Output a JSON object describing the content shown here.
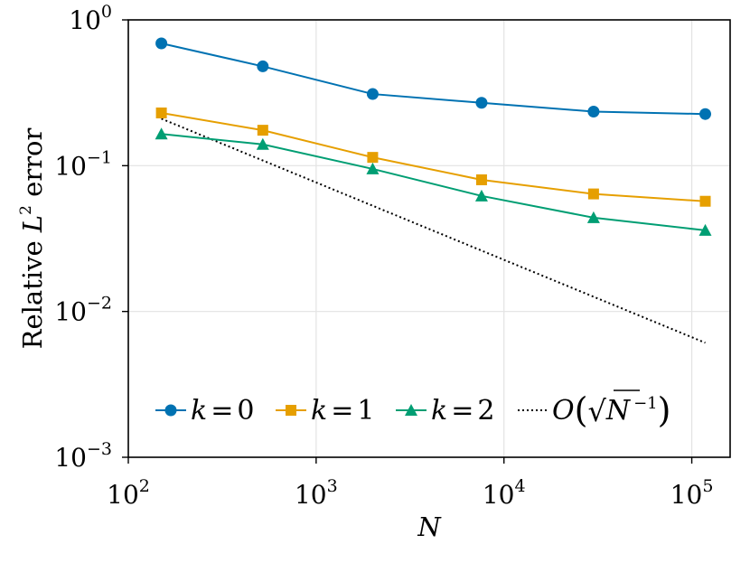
{
  "chart_data": {
    "type": "line",
    "xscale": "log",
    "yscale": "log",
    "xlim": [
      100,
      160000
    ],
    "ylim": [
      0.001,
      1
    ],
    "xticks": [
      {
        "base": "10",
        "exp": "2"
      },
      {
        "base": "10",
        "exp": "3"
      },
      {
        "base": "10",
        "exp": "4"
      },
      {
        "base": "10",
        "exp": "5"
      }
    ],
    "yticks": [
      {
        "base": "10",
        "exp": "0"
      },
      {
        "base": "10",
        "exp": "−1"
      },
      {
        "base": "10",
        "exp": "−2"
      },
      {
        "base": "10",
        "exp": "−3"
      }
    ],
    "xlabel": "N",
    "ylabel": {
      "prefix": "Relative ",
      "symbol": "L",
      "sup": "2",
      "suffix": " error"
    },
    "grid": true,
    "legend_position": "bottom",
    "x": [
      150,
      520,
      2000,
      7600,
      30000,
      118000
    ],
    "series": [
      {
        "name": "k = 0",
        "label_var": "k",
        "label_eq": "=",
        "label_val": "0",
        "color": "#0072B2",
        "marker": "circle",
        "values": [
          0.69,
          0.48,
          0.31,
          0.27,
          0.235,
          0.226
        ]
      },
      {
        "name": "k = 1",
        "label_var": "k",
        "label_eq": "=",
        "label_val": "1",
        "color": "#E69F00",
        "marker": "square",
        "values": [
          0.23,
          0.175,
          0.114,
          0.08,
          0.064,
          0.057
        ]
      },
      {
        "name": "k = 2",
        "label_var": "k",
        "label_eq": "=",
        "label_val": "2",
        "color": "#009E73",
        "marker": "triangle",
        "values": [
          0.165,
          0.14,
          0.095,
          0.062,
          0.044,
          0.036
        ]
      }
    ],
    "reference": {
      "name": "O(√N⁻¹)",
      "label_parts": {
        "O": "O",
        "open": "(",
        "sqrt": "√",
        "var": "N",
        "exp": "−1",
        "close": ")"
      },
      "color": "#000000",
      "style": "dotted",
      "x": [
        150,
        118000
      ],
      "values": [
        0.21,
        0.0061
      ]
    }
  }
}
